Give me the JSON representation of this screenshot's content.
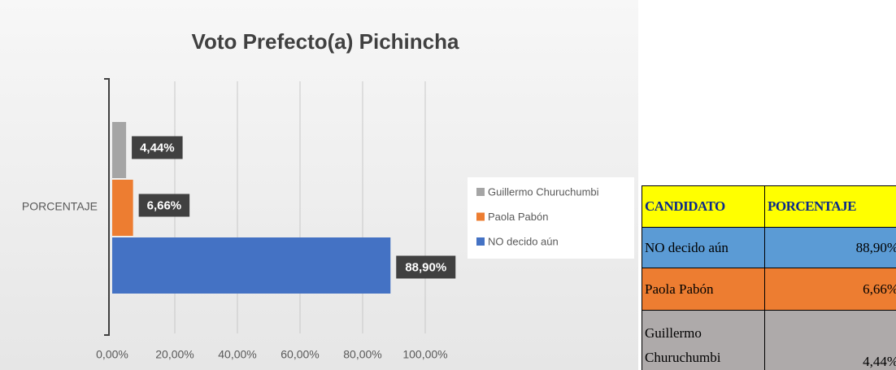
{
  "chart_data": {
    "type": "hbar",
    "title": "Voto Prefecto(a) Pichincha",
    "categories": [
      "PORCENTAJE"
    ],
    "series": [
      {
        "name": "Guillermo Churuchumbi",
        "color": "#a5a5a5",
        "values": [
          4.44
        ],
        "value_labels": [
          "4,44%"
        ]
      },
      {
        "name": "Paola Pabón",
        "color": "#ed7d31",
        "values": [
          6.66
        ],
        "value_labels": [
          "6,66%"
        ]
      },
      {
        "name": "NO decido aún",
        "color": "#4472c4",
        "values": [
          88.9
        ],
        "value_labels": [
          "88,90%"
        ]
      }
    ],
    "xlim": [
      0,
      100
    ],
    "xticks": [
      {
        "value": 0,
        "label": "0,00%"
      },
      {
        "value": 20,
        "label": "20,00%"
      },
      {
        "value": 40,
        "label": "40,00%"
      },
      {
        "value": 60,
        "label": "60,00%"
      },
      {
        "value": 80,
        "label": "80,00%"
      },
      {
        "value": 100,
        "label": "100,00%"
      }
    ],
    "grid": true,
    "legend": "right"
  },
  "table": {
    "header": [
      "CANDIDATO",
      "PORCENTAJE"
    ],
    "rows": [
      [
        "NO decido aún",
        "88,90%"
      ],
      [
        "Paola Pabón",
        "6,66%"
      ],
      [
        "Guillermo Churuchumbi",
        "4,44%"
      ]
    ]
  }
}
